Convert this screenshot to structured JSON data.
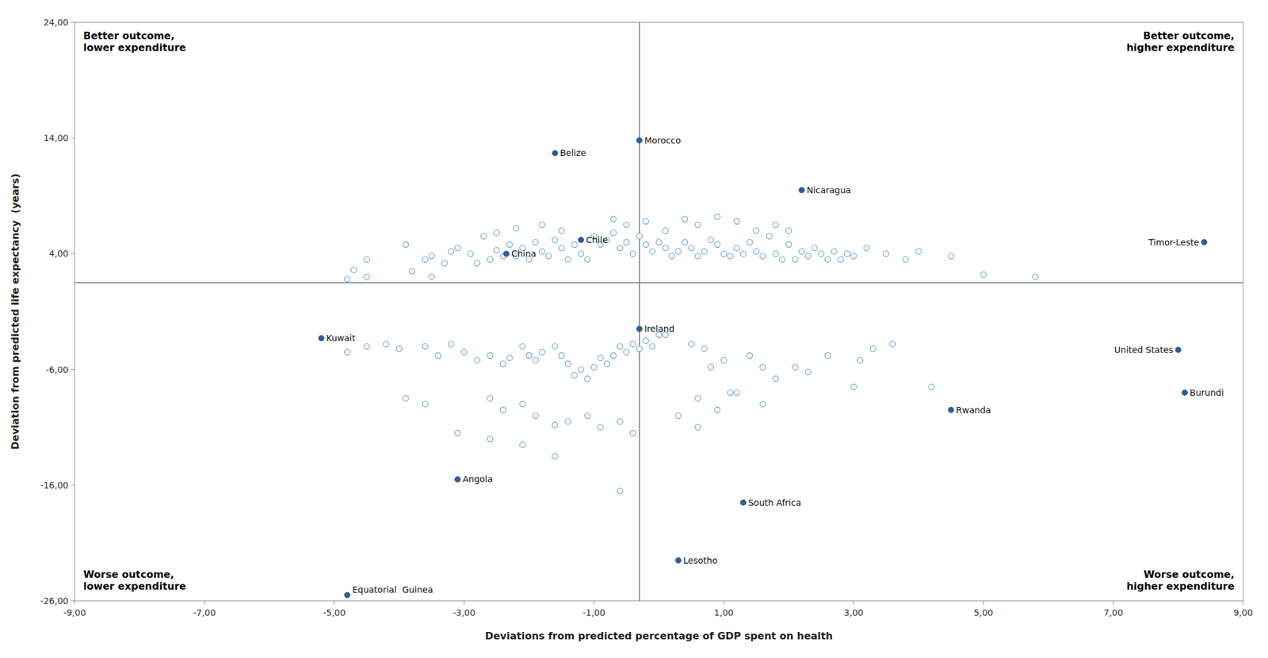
{
  "chart_data": {
    "type": "scatter",
    "xlabel": "Deviations from predicted percentage of GDP spent on health",
    "ylabel": "Deviation from predicted life expectancy  (years)",
    "xlim": [
      -9,
      9
    ],
    "ylim": [
      -26,
      24
    ],
    "xticks": [
      {
        "value": -9,
        "label": "-9,00"
      },
      {
        "value": -7,
        "label": "-7,00"
      },
      {
        "value": -5,
        "label": "-5,00"
      },
      {
        "value": -3,
        "label": "-3,00"
      },
      {
        "value": -1,
        "label": "-1,00"
      },
      {
        "value": 1,
        "label": "1,00"
      },
      {
        "value": 3,
        "label": "3,00"
      },
      {
        "value": 5,
        "label": "5,00"
      },
      {
        "value": 7,
        "label": "7,00"
      },
      {
        "value": 9,
        "label": "9,00"
      }
    ],
    "yticks": [
      {
        "value": -26,
        "label": "-26,00"
      },
      {
        "value": -16,
        "label": "-16,00"
      },
      {
        "value": -6,
        "label": "-6,00"
      },
      {
        "value": 4,
        "label": "4,00"
      },
      {
        "value": 14,
        "label": "14,00"
      },
      {
        "value": 24,
        "label": "24,00"
      }
    ],
    "grid": false,
    "x_line": -0.3,
    "y_line": 1.5,
    "annotations": [
      "Better outcome,\nlower expenditure",
      "Better outcome,\nhigher expenditure",
      "Worse outcome,\nlower expenditure",
      "Worse outcome,\nhigher expenditure"
    ],
    "series": [
      {
        "color": "#6fa8d4",
        "marker": "circle-open",
        "x": [
          -4.5,
          -4.7,
          -3.9,
          -3.6,
          -3.3,
          -3.1,
          -2.9,
          -2.8,
          -2.7,
          -2.6,
          -2.5,
          -2.4,
          -2.3,
          -2.2,
          -2.1,
          -2.0,
          -1.9,
          -1.8,
          -1.7,
          -1.6,
          -1.5,
          -1.4,
          -1.3,
          -1.2,
          -1.1,
          -1.0,
          -0.9,
          -0.8,
          -0.7,
          -0.6,
          -0.5,
          -0.4,
          -0.3,
          -0.2,
          -0.1,
          0.0,
          0.1,
          0.2,
          0.3,
          0.4,
          0.5,
          0.6,
          0.7,
          0.8,
          0.9,
          1.0,
          1.1,
          1.2,
          1.3,
          1.4,
          1.5,
          1.6,
          1.7,
          1.8,
          1.9,
          2.0,
          2.1,
          2.2,
          2.3,
          2.4,
          2.5,
          2.6,
          2.7,
          2.8,
          2.9,
          3.0,
          3.2,
          3.5,
          3.8,
          4.0,
          4.5,
          5.0,
          5.8,
          -3.5,
          -3.2,
          -2.5,
          -2.2,
          -1.8,
          -1.5,
          -0.7,
          -0.5,
          -0.2,
          0.1,
          0.4,
          0.6,
          0.9,
          1.2,
          1.5,
          1.8,
          2.0,
          -4.5,
          -4.8,
          -3.8,
          -3.5,
          -4.5,
          -4.8,
          -4.2,
          -4.0,
          -3.6,
          -3.4,
          -3.2,
          -3.0,
          -2.8,
          -2.6,
          -2.4,
          -2.3,
          -2.1,
          -2.0,
          -1.9,
          -1.8,
          -1.6,
          -1.5,
          -1.4,
          -1.3,
          -1.2,
          -1.1,
          -1.0,
          -0.9,
          -0.8,
          -0.7,
          -0.6,
          -0.5,
          -0.4,
          -0.3,
          -0.2,
          -0.1,
          0.0,
          0.1,
          0.5,
          0.7,
          0.8,
          1.0,
          1.2,
          1.4,
          1.6,
          1.8,
          2.1,
          2.3,
          2.6,
          3.1,
          3.3,
          3.6,
          4.2,
          -3.9,
          -3.6,
          -2.6,
          -2.4,
          -2.1,
          -1.9,
          -1.6,
          -1.4,
          -1.1,
          -0.9,
          -0.6,
          -0.4,
          0.3,
          0.6,
          0.9,
          1.1,
          -3.1,
          -2.6,
          -2.1,
          -1.6,
          -0.6,
          0.6,
          1.6,
          3.0
        ],
        "values": [
          3.5,
          2.6,
          4.8,
          3.5,
          3.2,
          4.5,
          4.0,
          3.2,
          5.5,
          3.5,
          4.3,
          3.8,
          4.8,
          3.8,
          4.5,
          3.5,
          5.0,
          4.2,
          3.8,
          5.2,
          4.5,
          3.5,
          4.8,
          4.0,
          3.5,
          5.5,
          4.8,
          5.2,
          5.8,
          4.5,
          5.0,
          4.0,
          5.5,
          4.8,
          4.2,
          5.0,
          4.5,
          3.8,
          4.2,
          5.0,
          4.5,
          3.8,
          4.2,
          5.2,
          4.8,
          4.0,
          3.8,
          4.5,
          4.0,
          5.0,
          4.2,
          3.8,
          5.5,
          4.0,
          3.5,
          4.8,
          3.5,
          4.2,
          3.8,
          4.5,
          4.0,
          3.5,
          4.2,
          3.5,
          4.0,
          3.8,
          4.5,
          4.0,
          3.5,
          4.2,
          3.8,
          2.2,
          2.0,
          3.8,
          4.2,
          5.8,
          6.2,
          6.5,
          6.0,
          7.0,
          6.5,
          6.8,
          6.0,
          7.0,
          6.5,
          7.2,
          6.8,
          6.0,
          6.5,
          6.0,
          2.0,
          1.8,
          2.5,
          2.0,
          -4.0,
          -4.5,
          -3.8,
          -4.2,
          -4.0,
          -4.8,
          -3.8,
          -4.5,
          -5.2,
          -4.8,
          -5.5,
          -5.0,
          -4.0,
          -4.8,
          -5.2,
          -4.5,
          -4.0,
          -4.8,
          -5.5,
          -6.5,
          -6.0,
          -6.8,
          -5.8,
          -5.0,
          -5.5,
          -4.8,
          -4.0,
          -4.5,
          -3.8,
          -4.2,
          -3.5,
          -4.0,
          -3.0,
          -3.0,
          -3.8,
          -4.2,
          -5.8,
          -5.2,
          -8.0,
          -4.8,
          -5.8,
          -6.8,
          -5.8,
          -6.2,
          -4.8,
          -5.2,
          -4.2,
          -3.8,
          -7.5,
          -8.5,
          -9.0,
          -8.5,
          -9.5,
          -9.0,
          -10.0,
          -10.8,
          -10.5,
          -10.0,
          -11.0,
          -10.5,
          -11.5,
          -10.0,
          -8.5,
          -9.5,
          -8.0,
          -11.5,
          -12.0,
          -12.5,
          -13.5,
          -16.5,
          -11.0,
          -9.0,
          -7.5
        ]
      },
      {
        "color": "#2e5f96",
        "marker": "circle",
        "x": [
          -0.3,
          -1.6,
          -2.35,
          -1.2,
          2.2,
          8.4,
          -5.2,
          -0.3,
          8.0,
          -3.1,
          1.3,
          4.5,
          8.1,
          0.3,
          -4.8
        ],
        "values": [
          13.8,
          12.7,
          4.0,
          5.2,
          9.5,
          5.0,
          -3.3,
          -2.5,
          -4.3,
          -15.5,
          -17.5,
          -9.5,
          -8.0,
          -22.5,
          -25.5
        ],
        "labels": [
          "Morocco",
          "Belize",
          "China",
          "Chile",
          "Nicaragua",
          "Timor-Leste",
          "Kuwait",
          "Ireland",
          "United States",
          "Angola",
          "South Africa",
          "Rwanda",
          "Burundi",
          "Lesotho",
          "Equatorial  Guinea"
        ]
      }
    ]
  }
}
